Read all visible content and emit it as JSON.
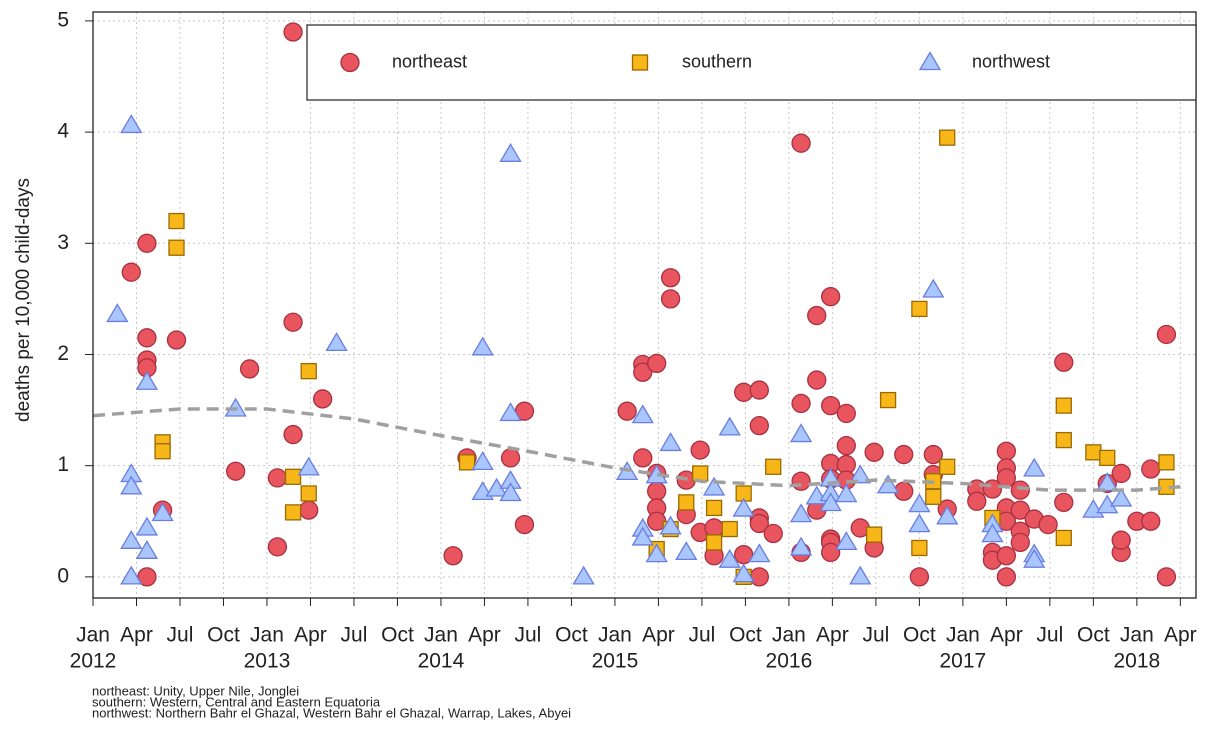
{
  "chart_data": {
    "type": "scatter",
    "y_label": "deaths per 10,000 child-days",
    "footnotes": [
      "northeast: Unity, Upper Nile, Jonglei",
      "southern: Western, Central and Eastern Equatoria",
      "northwest: Northern Bahr el Ghazal, Western Bahr el Ghazal, Warrap, Lakes, Abyei"
    ],
    "xlim": [
      2012.0,
      2018.34
    ],
    "ylim": [
      -0.19,
      5.08
    ],
    "yticks": [
      0,
      1,
      2,
      3,
      4,
      5
    ],
    "xticks": [
      {
        "value": 2012.0,
        "label": "Jan"
      },
      {
        "value": 2012.25,
        "label": "Apr"
      },
      {
        "value": 2012.5,
        "label": "Jul"
      },
      {
        "value": 2012.75,
        "label": "Oct"
      },
      {
        "value": 2013.0,
        "label": "Jan"
      },
      {
        "value": 2013.25,
        "label": "Apr"
      },
      {
        "value": 2013.5,
        "label": "Jul"
      },
      {
        "value": 2013.75,
        "label": "Oct"
      },
      {
        "value": 2014.0,
        "label": "Jan"
      },
      {
        "value": 2014.25,
        "label": "Apr"
      },
      {
        "value": 2014.5,
        "label": "Jul"
      },
      {
        "value": 2014.75,
        "label": "Oct"
      },
      {
        "value": 2015.0,
        "label": "Jan"
      },
      {
        "value": 2015.25,
        "label": "Apr"
      },
      {
        "value": 2015.5,
        "label": "Jul"
      },
      {
        "value": 2015.75,
        "label": "Oct"
      },
      {
        "value": 2016.0,
        "label": "Jan"
      },
      {
        "value": 2016.25,
        "label": "Apr"
      },
      {
        "value": 2016.5,
        "label": "Jul"
      },
      {
        "value": 2016.75,
        "label": "Oct"
      },
      {
        "value": 2017.0,
        "label": "Jan"
      },
      {
        "value": 2017.25,
        "label": "Apr"
      },
      {
        "value": 2017.5,
        "label": "Jul"
      },
      {
        "value": 2017.75,
        "label": "Oct"
      },
      {
        "value": 2018.0,
        "label": "Jan"
      },
      {
        "value": 2018.25,
        "label": "Apr"
      }
    ],
    "year_ticks": [
      2012,
      2013,
      2014,
      2015,
      2016,
      2017,
      2018
    ],
    "grid": true,
    "legend": "top",
    "series": [
      {
        "name": "northeast",
        "marker": "circle",
        "color": "#e8555f",
        "stroke": "#a83040",
        "x": [
          2012.31,
          2012.22,
          2012.31,
          2012.31,
          2012.31,
          2012.31,
          2012.4,
          2012.48,
          2012.82,
          2012.9,
          2013.06,
          2013.06,
          2013.15,
          2013.15,
          2013.15,
          2013.24,
          2013.32,
          2014.07,
          2014.15,
          2014.4,
          2014.48,
          2014.48,
          2015.07,
          2015.16,
          2015.16,
          2015.24,
          2015.16,
          2015.24,
          2015.24,
          2015.24,
          2015.24,
          2015.32,
          2015.32,
          2015.41,
          2015.41,
          2015.49,
          2015.49,
          2015.57,
          2015.57,
          2015.74,
          2015.74,
          2015.83,
          2015.83,
          2015.83,
          2015.83,
          2015.83,
          2015.91,
          2016.07,
          2016.07,
          2016.07,
          2016.07,
          2016.16,
          2016.16,
          2016.16,
          2016.24,
          2016.24,
          2016.24,
          2016.24,
          2016.24,
          2016.24,
          2016.24,
          2016.33,
          2016.33,
          2016.33,
          2016.33,
          2016.41,
          2016.49,
          2016.49,
          2016.66,
          2016.66,
          2016.83,
          2016.83,
          2016.75,
          2016.91,
          2017.08,
          2017.08,
          2017.17,
          2017.17,
          2017.17,
          2017.25,
          2017.25,
          2017.25,
          2017.25,
          2017.25,
          2017.25,
          2017.25,
          2017.33,
          2017.33,
          2017.33,
          2017.33,
          2017.41,
          2017.49,
          2017.58,
          2017.58,
          2017.83,
          2017.91,
          2017.91,
          2017.91,
          2018.0,
          2018.08,
          2018.08,
          2018.17,
          2018.17
        ],
        "values": [
          0,
          2.74,
          3.0,
          2.15,
          1.95,
          1.88,
          0.6,
          2.13,
          0.95,
          1.87,
          0.27,
          0.89,
          2.29,
          1.28,
          4.9,
          0.6,
          1.6,
          0.19,
          1.07,
          1.07,
          1.49,
          0.47,
          1.49,
          1.91,
          1.84,
          1.92,
          1.07,
          0.93,
          0.77,
          0.62,
          0.5,
          2.69,
          2.5,
          0.56,
          0.87,
          1.14,
          0.4,
          0.19,
          0.44,
          1.66,
          0.2,
          1.68,
          1.36,
          0.53,
          0.48,
          0,
          0.39,
          3.9,
          1.56,
          0.86,
          0.22,
          1.77,
          2.35,
          0.6,
          2.52,
          1.54,
          1.02,
          0.88,
          0.34,
          0.31,
          0.22,
          1.47,
          1.18,
          1.01,
          0.87,
          0.44,
          1.12,
          0.26,
          1.1,
          0.77,
          1.1,
          0.92,
          0,
          0.61,
          0.79,
          0.68,
          0.79,
          0.22,
          0.15,
          1.13,
          0.98,
          0.89,
          0.62,
          0.5,
          0.19,
          0,
          0.78,
          0.6,
          0.41,
          0.31,
          0.52,
          0.47,
          1.93,
          0.67,
          0.84,
          0.22,
          0.33,
          0.93,
          0.5,
          0.5,
          0.97,
          2.18,
          0
        ]
      },
      {
        "name": "southern",
        "marker": "square",
        "color": "#f7b718",
        "stroke": "#9a6a00",
        "x": [
          2012.48,
          2012.48,
          2012.4,
          2012.4,
          2013.15,
          2013.15,
          2013.24,
          2013.24,
          2014.15,
          2015.24,
          2015.32,
          2015.41,
          2015.49,
          2015.57,
          2015.57,
          2015.66,
          2015.74,
          2015.74,
          2015.91,
          2016.49,
          2016.57,
          2016.75,
          2016.75,
          2016.83,
          2016.83,
          2016.91,
          2016.91,
          2017.17,
          2017.58,
          2017.58,
          2017.58,
          2017.75,
          2017.83,
          2018.17,
          2018.17
        ],
        "values": [
          3.2,
          2.96,
          1.21,
          1.13,
          0.9,
          0.58,
          1.85,
          0.75,
          1.03,
          0.25,
          0.43,
          0.67,
          0.93,
          0.62,
          0.31,
          0.43,
          0.75,
          0,
          0.99,
          0.38,
          1.59,
          2.41,
          0.26,
          0.72,
          0.86,
          3.95,
          0.99,
          0.53,
          1.54,
          1.23,
          0.35,
          1.12,
          1.07,
          1.03,
          0.81
        ]
      },
      {
        "name": "northwest",
        "marker": "triangle",
        "color": "#a9c6ff",
        "stroke": "#6a7de0",
        "x": [
          2012.14,
          2012.22,
          2012.22,
          2012.22,
          2012.22,
          2012.22,
          2012.31,
          2012.31,
          2012.31,
          2012.4,
          2012.82,
          2013.24,
          2013.4,
          2014.24,
          2014.24,
          2014.24,
          2014.32,
          2014.4,
          2014.4,
          2014.4,
          2014.4,
          2014.82,
          2015.07,
          2015.16,
          2015.16,
          2015.16,
          2015.24,
          2015.24,
          2015.32,
          2015.32,
          2015.41,
          2015.66,
          2015.57,
          2015.66,
          2015.74,
          2015.74,
          2015.83,
          2016.07,
          2016.07,
          2016.07,
          2016.16,
          2016.24,
          2016.24,
          2016.24,
          2016.33,
          2016.33,
          2016.41,
          2016.41,
          2016.57,
          2016.75,
          2016.75,
          2016.83,
          2016.91,
          2017.17,
          2017.17,
          2017.41,
          2017.41,
          2017.41,
          2017.75,
          2017.83,
          2017.83,
          2017.91
        ],
        "values": [
          2.36,
          4.06,
          0.92,
          0.81,
          0.32,
          0,
          1.75,
          0.44,
          0.23,
          0.57,
          1.51,
          0.98,
          2.1,
          2.06,
          1.03,
          0.76,
          0.79,
          3.8,
          1.47,
          0.86,
          0.75,
          0,
          0.94,
          1.45,
          0.43,
          0.35,
          0.91,
          0.2,
          1.2,
          0.45,
          0.22,
          1.34,
          0.8,
          0.15,
          0.61,
          0.02,
          0.2,
          1.28,
          0.56,
          0.26,
          0.72,
          0.88,
          0.75,
          0.66,
          0.74,
          0.31,
          0,
          0.91,
          0.82,
          0.65,
          0.47,
          2.58,
          0.54,
          0.47,
          0.38,
          0.97,
          0.2,
          0.15,
          0.6,
          0.84,
          0.64,
          0.7
        ]
      },
      {
        "marker": "dashed-line",
        "color": "#a0a0a0",
        "x": [
          2012.0,
          2012.5,
          2013.0,
          2013.5,
          2014.0,
          2014.5,
          2015.0,
          2015.5,
          2016.0,
          2016.5,
          2017.0,
          2017.5,
          2018.0,
          2018.25
        ],
        "values": [
          1.45,
          1.51,
          1.51,
          1.42,
          1.27,
          1.13,
          0.98,
          0.86,
          0.82,
          0.87,
          0.84,
          0.78,
          0.78,
          0.81
        ]
      }
    ]
  }
}
